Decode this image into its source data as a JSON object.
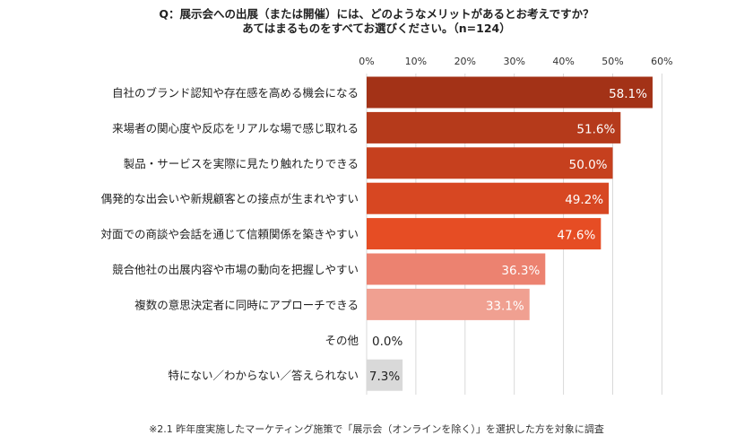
{
  "title_line1": "Q：展示会への出展（または開催）には、どのようなメリットがあるとお考えですか？",
  "title_line2": "あてはまるものをすべてお選びください。（n=124）",
  "footnote": "※2.1 昨年度実施したマーケティング施策で「展示会（オンラインを除く）」を選択した方を対象に調査",
  "chart_data": {
    "type": "bar",
    "orientation": "horizontal",
    "x_ticks": [
      "0%",
      "10%",
      "20%",
      "30%",
      "40%",
      "50%",
      "60%"
    ],
    "xlim": [
      0,
      60
    ],
    "grid": true,
    "categories": [
      "自社のブランド認知や存在感を高める機会になる",
      "来場者の関心度や反応をリアルな場で感じ取れる",
      "製品・サービスを実際に見たり触れたりできる",
      "偶発的な出会いや新規顧客との接点が生まれやすい",
      "対面での商談や会話を通じて信頼関係を築きやすい",
      "競合他社の出展内容や市場の動向を把握しやすい",
      "複数の意思決定者に同時にアプローチできる",
      "その他",
      "特にない／わからない／答えられない"
    ],
    "values": [
      58.1,
      51.6,
      50.0,
      49.2,
      47.6,
      36.3,
      33.1,
      0.0,
      7.3
    ],
    "labels": [
      "58.1%",
      "51.6%",
      "50.0%",
      "49.2%",
      "47.6%",
      "36.3%",
      "33.1%",
      "0.0%",
      "7.3%"
    ],
    "colors": [
      "#A33217",
      "#B53A1B",
      "#C6401E",
      "#D74722",
      "#E64D24",
      "#EC8270",
      "#F0A091",
      "#F0A091",
      "#D9D9D9"
    ],
    "label_colors": [
      "#ffffff",
      "#ffffff",
      "#ffffff",
      "#ffffff",
      "#ffffff",
      "#ffffff",
      "#ffffff",
      "#222222",
      "#222222"
    ]
  }
}
